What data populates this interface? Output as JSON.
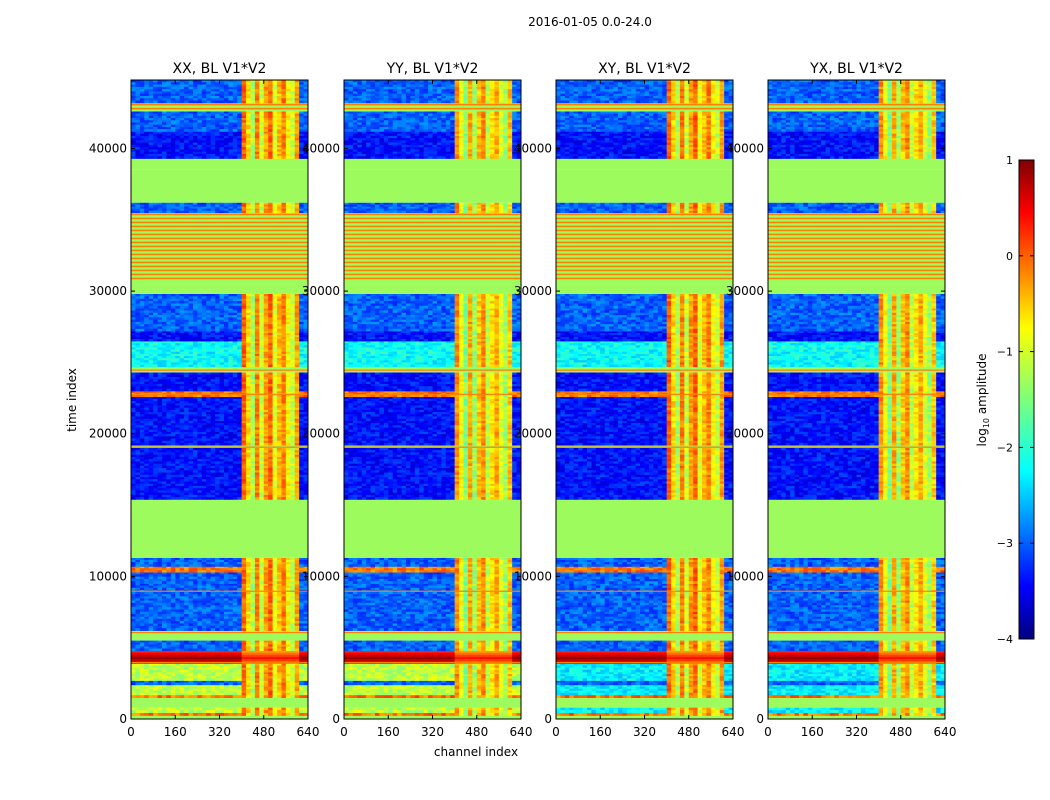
{
  "figure": {
    "suptitle": "2016-01-05 0.0-24.0"
  },
  "chart_data": {
    "type": "heatmap",
    "suptitle": "2016-01-05 0.0-24.0",
    "xlabel": "channel index",
    "ylabel": "time index",
    "xlim": [
      0,
      640
    ],
    "ylim": [
      0,
      44800
    ],
    "xticks": [
      0,
      160,
      320,
      480,
      640
    ],
    "yticks": [
      0,
      10000,
      20000,
      30000,
      40000
    ],
    "panels": [
      {
        "title": "XX, BL V1*V2",
        "pol": "XX"
      },
      {
        "title": "YY, BL V1*V2",
        "pol": "YY"
      },
      {
        "title": "XY, BL V1*V2",
        "pol": "XY"
      },
      {
        "title": "YX, BL V1*V2",
        "pol": "YX"
      }
    ],
    "colorbar": {
      "label": "log10 amplitude",
      "label_main": "log",
      "label_sub": "10",
      "label_rest": " amplitude",
      "range": [
        -4,
        1
      ],
      "ticks": [
        -4,
        -3,
        -2,
        -1,
        0,
        1
      ],
      "cmap": "jet"
    },
    "features": {
      "bright_channel_band": [
        400,
        600
      ],
      "flagged_time_ranges": [
        [
          11300,
          15400
        ],
        [
          30500,
          35500
        ],
        [
          36200,
          39300
        ]
      ],
      "strong_rfi_time_range": [
        3900,
        4800
      ]
    }
  },
  "colors": {
    "flag_green": "#9efb5e",
    "rfi_orange": "#ff7f00",
    "low_blue": "#0a25e0",
    "dark_red": "#7f0000"
  }
}
